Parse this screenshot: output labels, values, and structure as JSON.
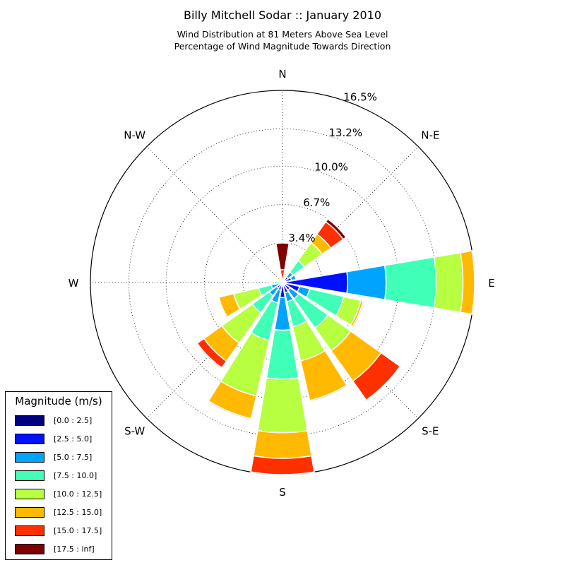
{
  "title": "Billy Mitchell Sodar :: January 2010",
  "subtitle_line1": "Wind Distribution at 81 Meters Above Sea Level",
  "subtitle_line2": "Percentage of Wind Magnitude Towards Direction",
  "legend": {
    "title": "Magnitude (m/s)",
    "items": [
      {
        "label": "[0.0 : 2.5]",
        "color": "#00007f"
      },
      {
        "label": "[2.5 : 5.0]",
        "color": "#0010ff"
      },
      {
        "label": "[5.0 : 7.5]",
        "color": "#00a4ff"
      },
      {
        "label": "[7.5 : 10.0]",
        "color": "#40ffb7"
      },
      {
        "label": "[10.0 : 12.5]",
        "color": "#b7ff40"
      },
      {
        "label": "[12.5 : 15.0]",
        "color": "#ffb900"
      },
      {
        "label": "[15.0 : 17.5]",
        "color": "#ff3000"
      },
      {
        "label": "[17.5 : inf]",
        "color": "#7f0000"
      }
    ]
  },
  "chart_data": {
    "type": "wind-rose",
    "direction_labels": [
      "N",
      "N-E",
      "E",
      "S-E",
      "S",
      "S-W",
      "W",
      "N-W"
    ],
    "radial_ticks": [
      "3.4%",
      "6.7%",
      "10.0%",
      "13.2%",
      "16.5%"
    ],
    "radial_tick_values": [
      3.4,
      6.7,
      10.0,
      13.2,
      16.5
    ],
    "rmax": 16.5,
    "grid": true,
    "legend_position": "lower-left",
    "sector_count": 16,
    "sector_directions_deg": [
      0,
      22.5,
      45,
      67.5,
      90,
      112.5,
      135,
      157.5,
      180,
      202.5,
      225,
      247.5,
      270,
      292.5,
      315,
      337.5
    ],
    "bins": [
      "[0.0 : 2.5]",
      "[2.5 : 5.0]",
      "[5.0 : 7.5]",
      "[7.5 : 10.0]",
      "[10.0 : 12.5]",
      "[12.5 : 15.0]",
      "[15.0 : 17.5]",
      "[17.5 : inf]"
    ],
    "cumulative_percent": [
      [
        0.1,
        0.1,
        0.1,
        0.1,
        0.2,
        0.4,
        1.1,
        3.4
      ],
      [
        0.1,
        0.2,
        0.3,
        0.4,
        0.5,
        0.6,
        0.7,
        0.75
      ],
      [
        0.2,
        0.6,
        1.1,
        2.3,
        4.2,
        5.1,
        6.4,
        6.7
      ],
      [
        0.2,
        0.8,
        1.2,
        1.2,
        1.2,
        1.2,
        1.2,
        1.2
      ],
      [
        0.3,
        5.6,
        8.9,
        13.2,
        15.5,
        16.5,
        16.5,
        16.5
      ],
      [
        0.3,
        1.5,
        2.4,
        5.4,
        6.9,
        7.1,
        7.2,
        7.2
      ],
      [
        0.2,
        0.8,
        1.7,
        4.8,
        7.2,
        10.4,
        12.4,
        12.4
      ],
      [
        0.2,
        0.9,
        1.7,
        3.9,
        6.9,
        10.4,
        10.5,
        10.5
      ],
      [
        0.2,
        1.3,
        4.1,
        8.3,
        12.9,
        15.1,
        16.5,
        16.5
      ],
      [
        0.1,
        0.7,
        1.8,
        5.1,
        10.0,
        12.0,
        12.1,
        12.1
      ],
      [
        0.1,
        0.6,
        1.4,
        3.2,
        6.4,
        8.3,
        9.0,
        9.1
      ],
      [
        0.1,
        0.4,
        1.0,
        2.1,
        4.3,
        5.6,
        5.6,
        5.6
      ],
      [
        0.1,
        0.2,
        0.4,
        0.7,
        0.9,
        1.0,
        1.0,
        1.0
      ],
      [
        0.1,
        0.2,
        0.3,
        0.4,
        0.45,
        0.5,
        0.5,
        0.5
      ],
      [
        0.1,
        0.1,
        0.2,
        0.3,
        0.4,
        0.55,
        0.6,
        0.6
      ],
      [
        0.1,
        0.1,
        0.2,
        0.2,
        0.25,
        0.3,
        0.35,
        0.35
      ]
    ]
  }
}
